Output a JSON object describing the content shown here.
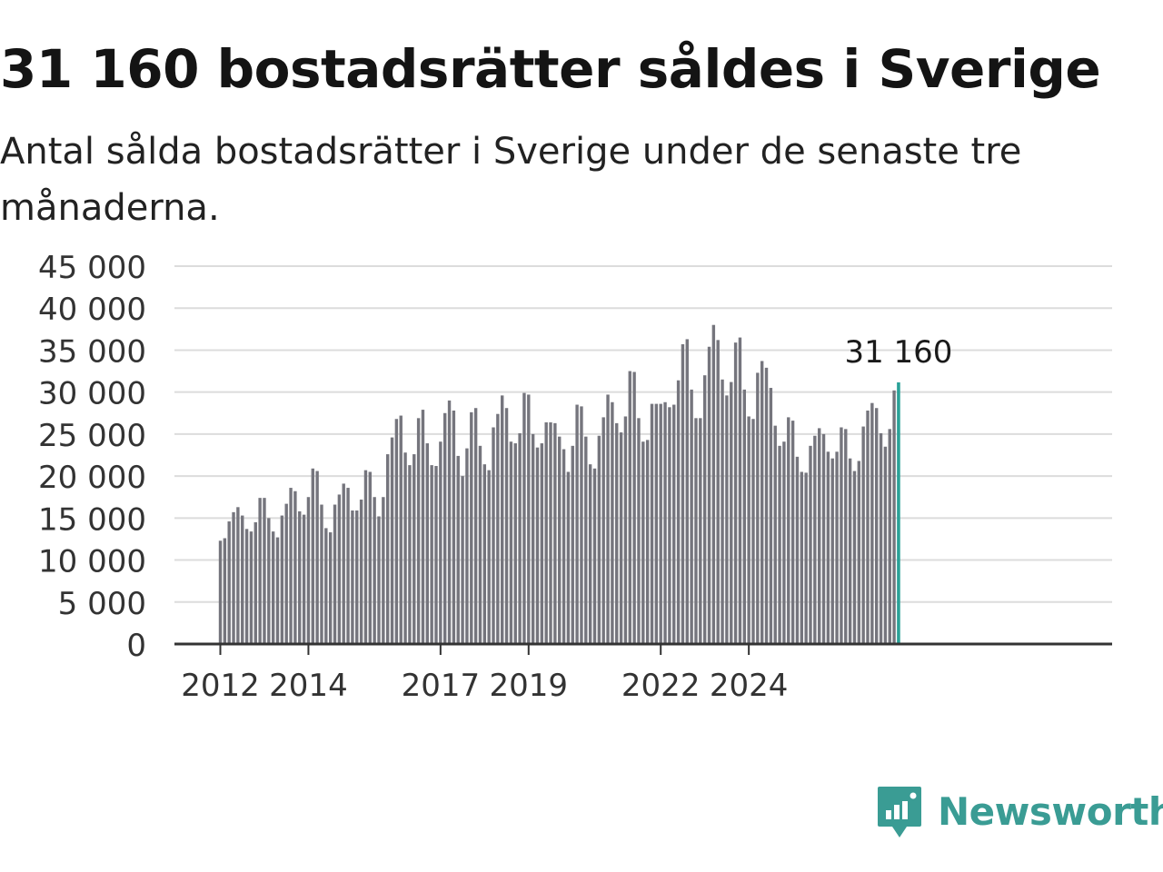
{
  "header": {
    "title": "31 160 bostadsrätter såldes i Sverige",
    "subtitle": "Antal sålda bostadsrätter i Sverige under de senaste tre månaderna."
  },
  "brand": {
    "name": "Newsworthy",
    "icon": "newsworthy-logo-icon",
    "color": "#3a9c94"
  },
  "chart_data": {
    "type": "bar",
    "title": "31 160 bostadsrätter såldes i Sverige",
    "subtitle": "Antal sålda bostadsrätter i Sverige under de senaste tre månaderna.",
    "xlabel": "",
    "ylabel": "",
    "ylim": [
      0,
      45000
    ],
    "yticks": [
      {
        "value": 0,
        "label": "0"
      },
      {
        "value": 5000,
        "label": "5 000"
      },
      {
        "value": 10000,
        "label": "10 000"
      },
      {
        "value": 15000,
        "label": "15 000"
      },
      {
        "value": 20000,
        "label": "20 000"
      },
      {
        "value": 25000,
        "label": "25 000"
      },
      {
        "value": 30000,
        "label": "30 000"
      },
      {
        "value": 35000,
        "label": "35 000"
      },
      {
        "value": 40000,
        "label": "40 000"
      },
      {
        "value": 45000,
        "label": "45 000"
      }
    ],
    "xticks": [
      {
        "label": "2012",
        "index": 0
      },
      {
        "label": "2014",
        "index": 20
      },
      {
        "label": "2017",
        "index": 50
      },
      {
        "label": "2019",
        "index": 70
      },
      {
        "label": "2022",
        "index": 100
      },
      {
        "label": "2024",
        "index": 120
      }
    ],
    "grid": true,
    "bar_color": "#75757d",
    "highlight_color": "#2aa198",
    "highlight_label": "31 160",
    "values": [
      12300,
      12600,
      14600,
      15700,
      16300,
      15300,
      13700,
      13400,
      14500,
      17400,
      17400,
      15000,
      13400,
      12700,
      15300,
      16700,
      18600,
      18200,
      15800,
      15400,
      17500,
      20900,
      20600,
      16600,
      13800,
      13300,
      16600,
      17800,
      19100,
      18600,
      15900,
      15900,
      17200,
      20700,
      20500,
      17500,
      15200,
      17500,
      22600,
      24600,
      26800,
      27200,
      22800,
      21300,
      22600,
      26900,
      27900,
      23900,
      21300,
      21200,
      24100,
      27500,
      29000,
      27800,
      22400,
      20000,
      23300,
      27600,
      28100,
      23600,
      21400,
      20700,
      25800,
      27400,
      29600,
      28100,
      24100,
      23900,
      25100,
      29900,
      29700,
      25000,
      23400,
      23900,
      26400,
      26400,
      26300,
      24700,
      23200,
      20500,
      23600,
      28500,
      28300,
      24700,
      21400,
      20900,
      24800,
      27000,
      29700,
      28800,
      26300,
      25200,
      27100,
      32500,
      32400,
      26900,
      24100,
      24300,
      28600,
      28600,
      28600,
      28800,
      28200,
      28500,
      31400,
      35700,
      36300,
      30300,
      26900,
      26900,
      32000,
      35400,
      38000,
      36200,
      31500,
      29600,
      31200,
      35900,
      36500,
      30300,
      27100,
      26800,
      32300,
      33700,
      32900,
      30500,
      26000,
      23600,
      24100,
      27000,
      26600,
      22300,
      20500,
      20400,
      23600,
      24800,
      25700,
      25000,
      22900,
      22100,
      22900,
      25800,
      25600,
      22100,
      20600,
      21800,
      25900,
      27800,
      28700,
      28100,
      25100,
      23500,
      25600,
      30200,
      31160
    ]
  }
}
